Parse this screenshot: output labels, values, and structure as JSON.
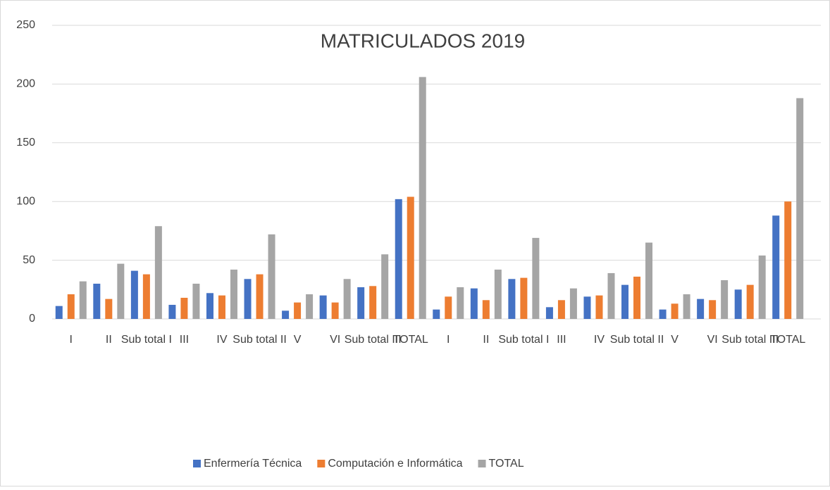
{
  "chart_data": {
    "type": "bar",
    "title": "MATRICULADOS 2019",
    "categories": [
      "I",
      "II",
      "Sub total I",
      "III",
      "IV",
      "Sub total II",
      "V",
      "VI",
      "Sub total III",
      "TOTAL",
      "I",
      "II",
      "Sub total I",
      "III",
      "IV",
      "Sub total II",
      "V",
      "VI",
      "Sub total III",
      "TOTAL"
    ],
    "series": [
      {
        "name": "Enfermería Técnica",
        "color": "#4472c4",
        "values": [
          11,
          30,
          41,
          12,
          22,
          34,
          7,
          20,
          27,
          102,
          8,
          26,
          34,
          10,
          19,
          29,
          8,
          17,
          25,
          88
        ]
      },
      {
        "name": "Computación e Informática",
        "color": "#ed7d31",
        "values": [
          21,
          17,
          38,
          18,
          20,
          38,
          14,
          14,
          28,
          104,
          19,
          16,
          35,
          16,
          20,
          36,
          13,
          16,
          29,
          100
        ]
      },
      {
        "name": "TOTAL",
        "color": "#a5a5a5",
        "values": [
          32,
          47,
          79,
          30,
          42,
          72,
          21,
          34,
          55,
          206,
          27,
          42,
          69,
          26,
          39,
          65,
          21,
          33,
          54,
          188
        ]
      }
    ],
    "ylim": [
      0,
      250
    ],
    "yticks": [
      0,
      50,
      100,
      150,
      200,
      250
    ],
    "grid": true,
    "legend": "bottom"
  }
}
